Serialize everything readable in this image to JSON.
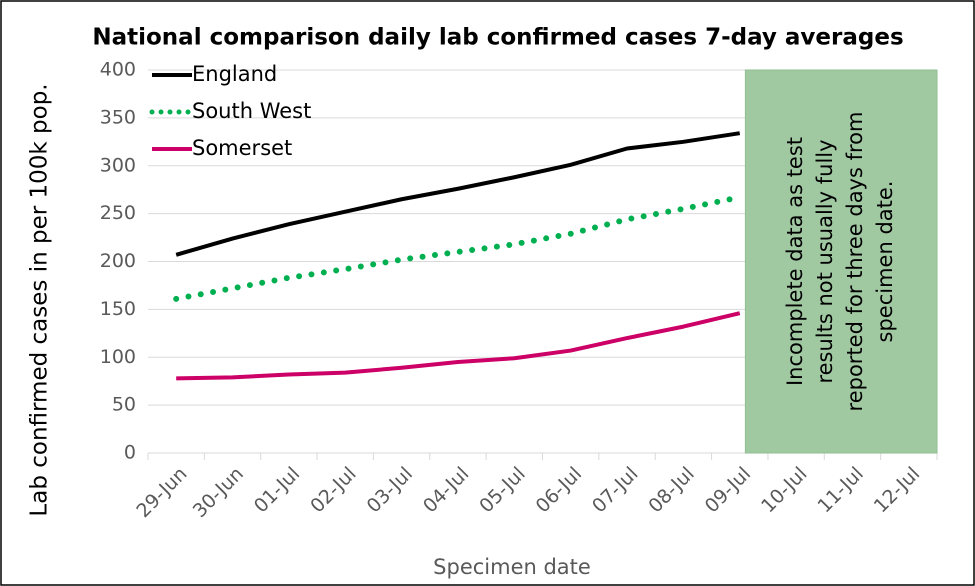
{
  "chart_data": {
    "type": "line",
    "title": "National comparison daily lab confirmed cases 7-day averages",
    "x_label": "Specimen date",
    "y_label": "Lab confirmed cases in per 100k pop.",
    "categories": [
      "29-Jun",
      "30-Jun",
      "01-Jul",
      "02-Jul",
      "03-Jul",
      "04-Jul",
      "05-Jul",
      "06-Jul",
      "07-Jul",
      "08-Jul",
      "09-Jul",
      "10-Jul",
      "11-Jul",
      "12-Jul"
    ],
    "series": [
      {
        "name": "England",
        "color": "#000000",
        "style": "solid",
        "values": [
          207,
          224,
          239,
          252,
          265,
          276,
          288,
          301,
          318,
          325,
          334,
          null,
          null,
          null
        ]
      },
      {
        "name": "South West",
        "color": "#00b050",
        "style": "dotted",
        "values": [
          161,
          172,
          183,
          192,
          202,
          210,
          218,
          229,
          244,
          255,
          267,
          null,
          null,
          null
        ]
      },
      {
        "name": "Somerset",
        "color": "#cc0066",
        "style": "solid",
        "values": [
          78,
          79,
          82,
          84,
          89,
          95,
          99,
          107,
          120,
          132,
          146,
          null,
          null,
          null
        ]
      }
    ],
    "ylim": [
      0,
      400
    ],
    "yticks": [
      0,
      50,
      100,
      150,
      200,
      250,
      300,
      350,
      400
    ],
    "grid": true,
    "legend": "top-left",
    "annotation": {
      "lines": [
        "Incomplete data as test",
        "results not usually fully",
        "reported for three days from",
        "specimen date."
      ],
      "color": "#a0c9a2"
    }
  }
}
